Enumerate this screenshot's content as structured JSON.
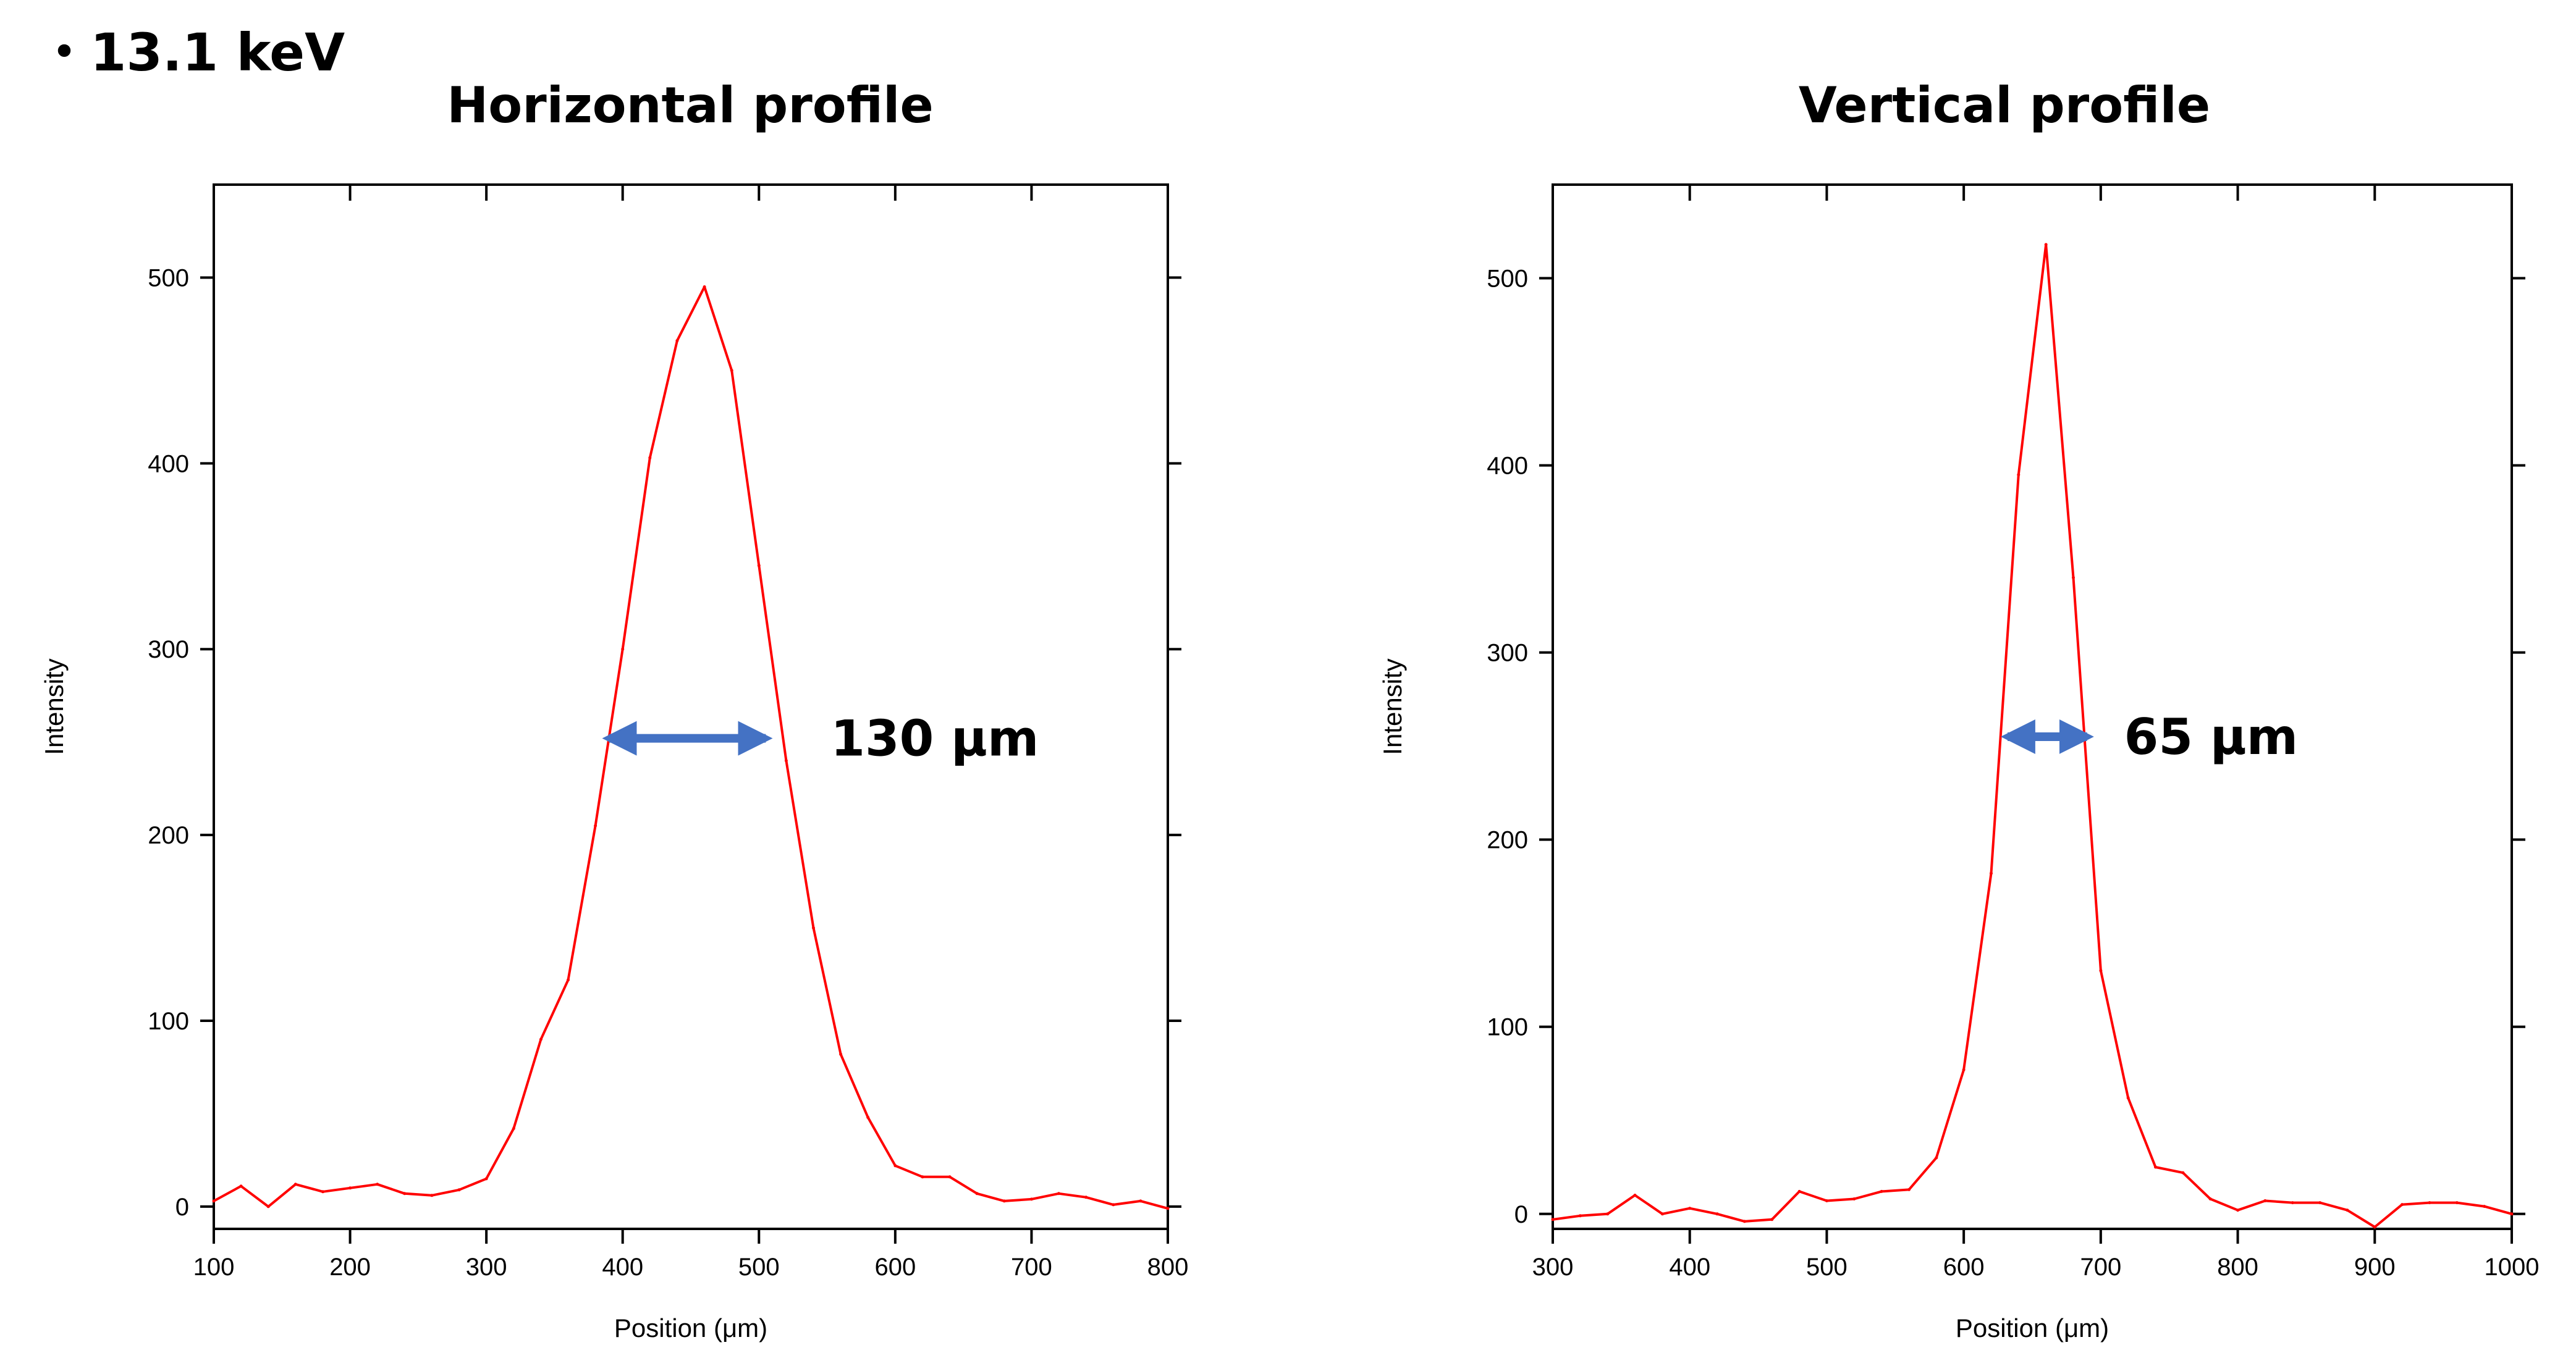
{
  "heading": "・13.1 keV",
  "colors": {
    "line": "#ff0000",
    "arrow": "#4472c4",
    "axis": "#000000"
  },
  "chart_data": [
    {
      "type": "line",
      "title": "Horizontal profile",
      "xlabel": "Position (μm)",
      "ylabel": "Intensity",
      "xlim": [
        100,
        800
      ],
      "ylim": [
        -12,
        550
      ],
      "xticks": [
        100,
        200,
        300,
        400,
        500,
        600,
        700,
        800
      ],
      "yticks": [
        0,
        100,
        200,
        300,
        400,
        500
      ],
      "x": [
        100,
        120,
        140,
        160,
        180,
        200,
        220,
        240,
        260,
        280,
        300,
        320,
        340,
        360,
        380,
        400,
        420,
        440,
        460,
        480,
        500,
        520,
        540,
        560,
        580,
        600,
        620,
        640,
        660,
        680,
        700,
        720,
        740,
        760,
        780,
        800
      ],
      "y": [
        3,
        11,
        0,
        12,
        8,
        10,
        12,
        7,
        6,
        9,
        15,
        42,
        90,
        122,
        205,
        300,
        403,
        466,
        495,
        450,
        345,
        240,
        150,
        82,
        48,
        22,
        16,
        16,
        7,
        3,
        4,
        7,
        5,
        1,
        3,
        -1
      ],
      "annotation": {
        "text": "130 μm",
        "from": 390,
        "to": 505,
        "at": 252
      }
    },
    {
      "type": "line",
      "title": "Vertical profile",
      "xlabel": "Position (μm)",
      "ylabel": "Intensity",
      "xlim": [
        300,
        1000
      ],
      "ylim": [
        -8,
        550
      ],
      "xticks": [
        300,
        400,
        500,
        600,
        700,
        800,
        900,
        1000
      ],
      "yticks": [
        0,
        100,
        200,
        300,
        400,
        500
      ],
      "x": [
        300,
        320,
        340,
        360,
        380,
        400,
        420,
        440,
        460,
        480,
        500,
        520,
        540,
        560,
        580,
        600,
        620,
        640,
        660,
        680,
        700,
        720,
        740,
        760,
        780,
        800,
        820,
        840,
        860,
        880,
        900,
        920,
        940,
        960,
        980,
        1000
      ],
      "y": [
        -3,
        -1,
        0,
        10,
        0,
        3,
        0,
        -4,
        -3,
        12,
        7,
        8,
        12,
        13,
        30,
        77,
        182,
        395,
        518,
        340,
        130,
        62,
        25,
        22,
        8,
        2,
        7,
        6,
        6,
        2,
        -7,
        5,
        6,
        6,
        4,
        0
      ],
      "annotation": {
        "text": "65 μm",
        "from": 632,
        "to": 690,
        "at": 255
      }
    }
  ]
}
